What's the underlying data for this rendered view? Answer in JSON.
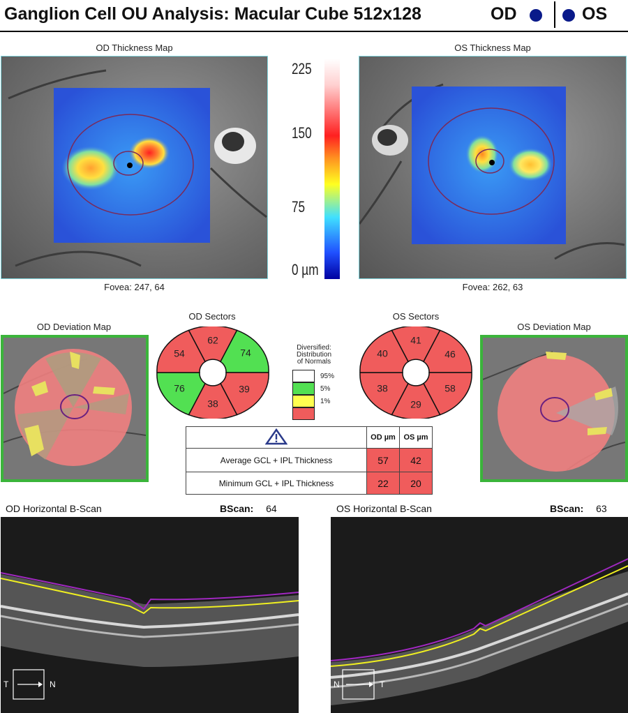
{
  "header": {
    "title": "Ganglion Cell OU Analysis: Macular Cube 512x128",
    "od_label": "OD",
    "os_label": "OS"
  },
  "thickness_maps": {
    "od_caption": "OD Thickness Map",
    "os_caption": "OS Thickness Map",
    "od_fovea": "Fovea: 247, 64",
    "os_fovea": "Fovea: 262, 63"
  },
  "color_scale": {
    "labels": [
      "225",
      "150",
      "75",
      "0 µm"
    ],
    "colors": [
      "#ffffff",
      "#ff2020",
      "#ffff00",
      "#20d0ff",
      "#0000a0"
    ]
  },
  "deviation_maps": {
    "od_caption": "OD Deviation Map",
    "os_caption": "OS Deviation Map"
  },
  "sectors": {
    "od_caption": "OD Sectors",
    "os_caption": "OS Sectors",
    "od": {
      "superior": {
        "value": "62",
        "color": "#f05c5c"
      },
      "superonasal": {
        "value": "74",
        "color": "#52e052"
      },
      "inferonasal": {
        "value": "39",
        "color": "#f05c5c"
      },
      "inferior": {
        "value": "38",
        "color": "#f05c5c"
      },
      "inferotemporal": {
        "value": "76",
        "color": "#52e052"
      },
      "superotemporal": {
        "value": "54",
        "color": "#f05c5c"
      }
    },
    "os": {
      "superior": {
        "value": "41",
        "color": "#f05c5c"
      },
      "superotemporal": {
        "value": "46",
        "color": "#f05c5c"
      },
      "inferotemporal": {
        "value": "58",
        "color": "#f05c5c"
      },
      "inferior": {
        "value": "29",
        "color": "#f05c5c"
      },
      "inferonasal": {
        "value": "38",
        "color": "#f05c5c"
      },
      "superonasal": {
        "value": "40",
        "color": "#f05c5c"
      }
    }
  },
  "legend": {
    "title_lines": [
      "Diversified:",
      "Distribution",
      "of Normals"
    ],
    "items": [
      {
        "label": "95%",
        "color": "#ffffff"
      },
      {
        "label": "5%",
        "color": "#52e052"
      },
      {
        "label": "1%",
        "color": "#ffff50"
      },
      {
        "label": "",
        "color": "#f05c5c"
      }
    ]
  },
  "thickness_table": {
    "warning_icon": "warning-triangle-icon",
    "col_od": "OD µm",
    "col_os": "OS µm",
    "rows": [
      {
        "label": "Average GCL + IPL Thickness",
        "od": "57",
        "os": "42"
      },
      {
        "label": "Minimum GCL + IPL Thickness",
        "od": "22",
        "os": "20"
      }
    ]
  },
  "bscans": {
    "od_caption": "OD Horizontal B-Scan",
    "os_caption": "OS Horizontal B-Scan",
    "bscan_label": "BScan:",
    "od_bscan": "64",
    "os_bscan": "63",
    "od_axis": {
      "left": "T",
      "right": "N"
    },
    "os_axis": {
      "left": "N",
      "right": "T"
    }
  }
}
